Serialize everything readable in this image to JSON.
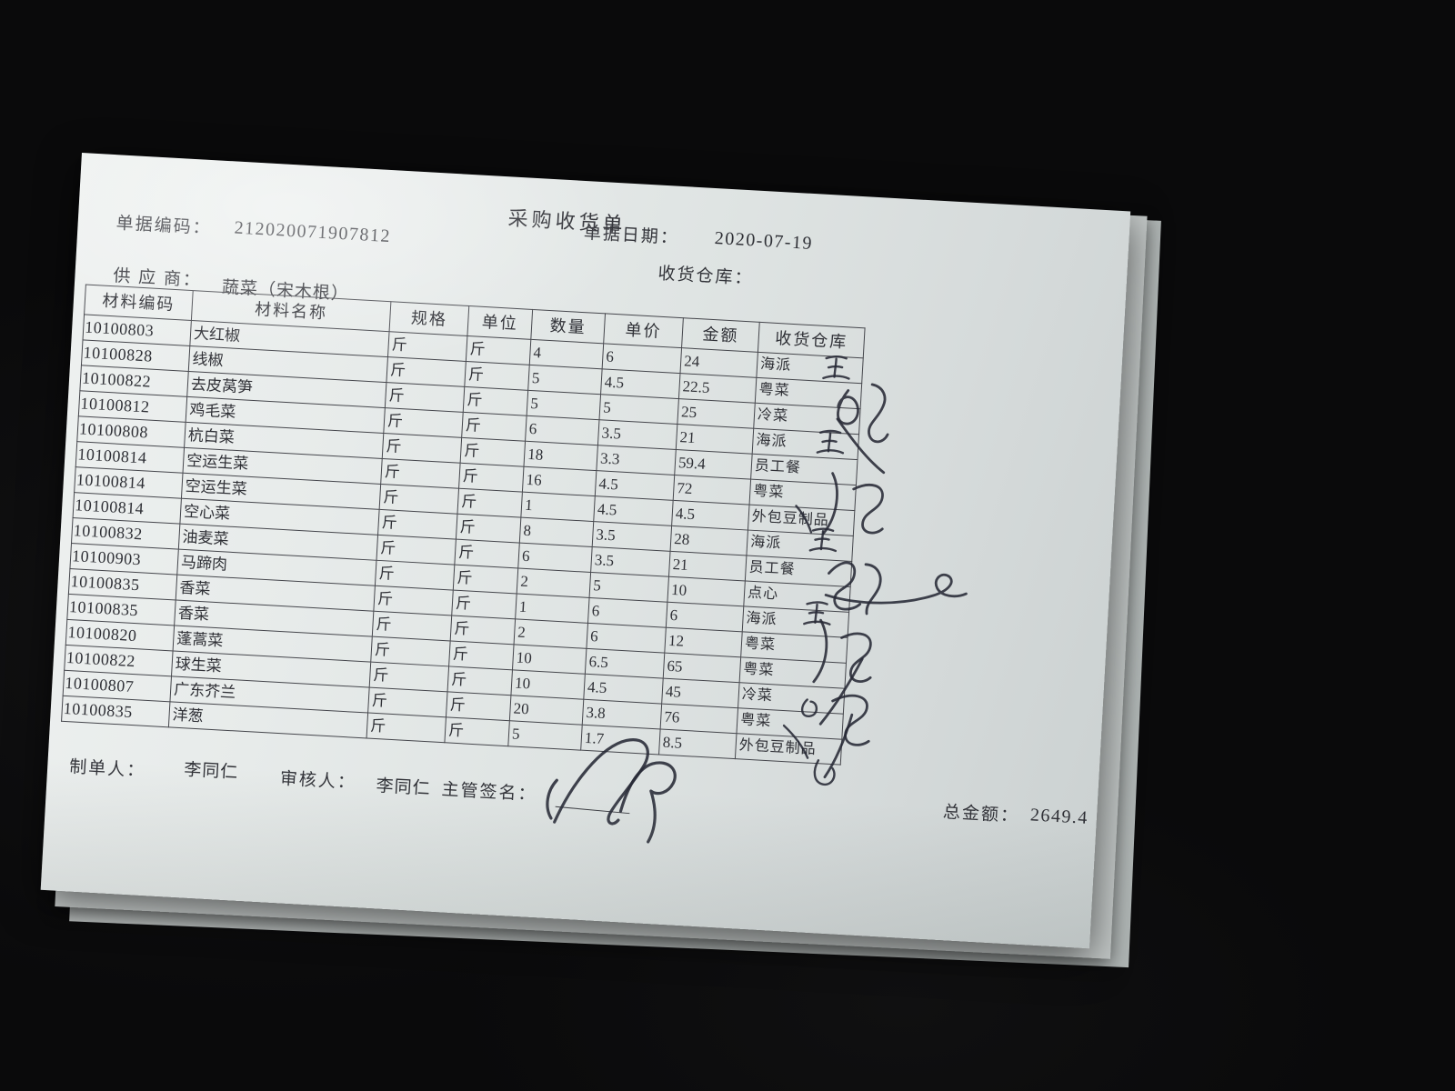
{
  "document": {
    "title": "采购收货单",
    "header": {
      "doc_code_label": "单据编码：",
      "doc_code": "212020071907812",
      "date_label": "单据日期：",
      "date": "2020-07-19",
      "supplier_label": "供 应 商：",
      "supplier": "蔬菜（宋木根）",
      "warehouse_label": "收货仓库："
    },
    "table": {
      "columns": [
        "材料编码",
        "材料名称",
        "规格",
        "单位",
        "数量",
        "单价",
        "金额",
        "收货仓库"
      ],
      "rows": [
        [
          "10100803",
          "大红椒",
          "斤",
          "斤",
          "4",
          "6",
          "24",
          "海派"
        ],
        [
          "10100828",
          "线椒",
          "斤",
          "斤",
          "5",
          "4.5",
          "22.5",
          "粤菜"
        ],
        [
          "10100822",
          "去皮莴笋",
          "斤",
          "斤",
          "5",
          "5",
          "25",
          "冷菜"
        ],
        [
          "10100812",
          "鸡毛菜",
          "斤",
          "斤",
          "6",
          "3.5",
          "21",
          "海派"
        ],
        [
          "10100808",
          "杭白菜",
          "斤",
          "斤",
          "18",
          "3.3",
          "59.4",
          "员工餐"
        ],
        [
          "10100814",
          "空运生菜",
          "斤",
          "斤",
          "16",
          "4.5",
          "72",
          "粤菜"
        ],
        [
          "10100814",
          "空运生菜",
          "斤",
          "斤",
          "1",
          "4.5",
          "4.5",
          "外包豆制品"
        ],
        [
          "10100814",
          "空心菜",
          "斤",
          "斤",
          "8",
          "3.5",
          "28",
          "海派"
        ],
        [
          "10100832",
          "油麦菜",
          "斤",
          "斤",
          "6",
          "3.5",
          "21",
          "员工餐"
        ],
        [
          "10100903",
          "马蹄肉",
          "斤",
          "斤",
          "2",
          "5",
          "10",
          "点心"
        ],
        [
          "10100835",
          "香菜",
          "斤",
          "斤",
          "1",
          "6",
          "6",
          "海派"
        ],
        [
          "10100835",
          "香菜",
          "斤",
          "斤",
          "2",
          "6",
          "12",
          "粤菜"
        ],
        [
          "10100820",
          "蓬蒿菜",
          "斤",
          "斤",
          "10",
          "6.5",
          "65",
          "粤菜"
        ],
        [
          "10100822",
          "球生菜",
          "斤",
          "斤",
          "10",
          "4.5",
          "45",
          "冷菜"
        ],
        [
          "10100807",
          "广东芥兰",
          "斤",
          "斤",
          "20",
          "3.8",
          "76",
          "粤菜"
        ],
        [
          "10100835",
          "洋葱",
          "斤",
          "斤",
          "5",
          "1.7",
          "8.5",
          "外包豆制品"
        ]
      ]
    },
    "footer": {
      "preparer_label": "制单人：",
      "preparer": "李同仁",
      "reviewer_label": "审核人：",
      "reviewer": "李同仁",
      "supervisor_sign_label": "主管签名：",
      "total_label": "总金额：",
      "total": "2649.4"
    },
    "handwriting": {
      "warehouse_column_marks": "illegible pen signature marks",
      "supervisor_signature": "illegible looping pen signature"
    },
    "colors": {
      "background": "#0a0a0b",
      "paper": "#e7ebea",
      "print_ink": "#2f3036",
      "table_line": "#45464c",
      "pen_ink": "#272935"
    }
  }
}
